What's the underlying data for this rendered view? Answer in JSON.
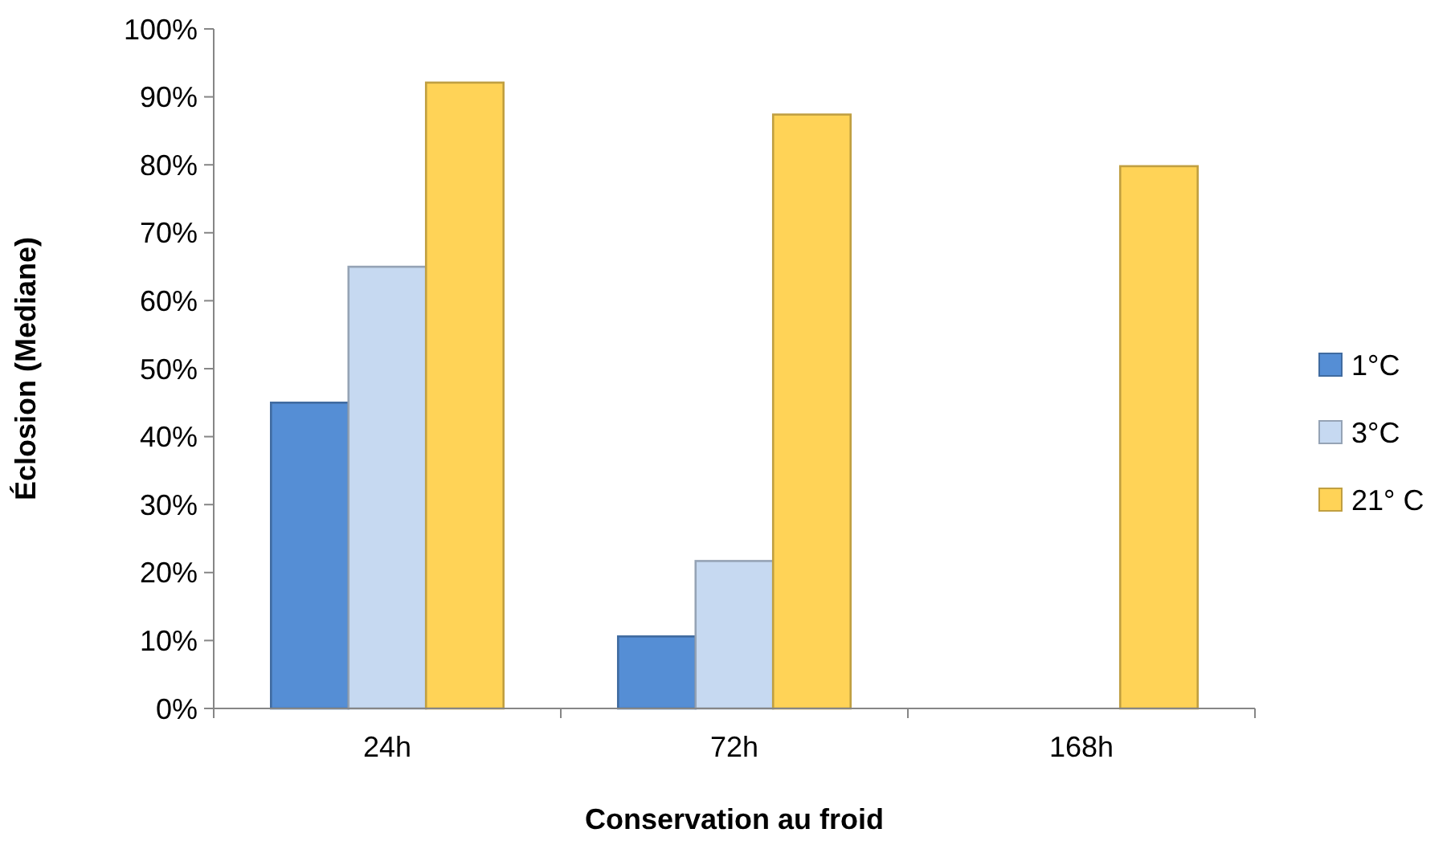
{
  "chart_data": {
    "type": "bar",
    "xlabel": "Conservation au froid",
    "ylabel": "Éclosion (Mediane)",
    "categories": [
      "24h",
      "72h",
      "168h"
    ],
    "series": [
      {
        "name": "1°C",
        "color": "#558ed5",
        "values": [
          45,
          10.6,
          null
        ]
      },
      {
        "name": "3°C",
        "color": "#c6d9f1",
        "values": [
          65,
          21.7,
          null
        ]
      },
      {
        "name": "21° C",
        "color": "#ffd357",
        "values": [
          92.1,
          87.4,
          79.8
        ]
      }
    ],
    "ylim": [
      0,
      100
    ],
    "yticks": [
      {
        "value": 0,
        "label": "0%"
      },
      {
        "value": 10,
        "label": "10%"
      },
      {
        "value": 20,
        "label": "20%"
      },
      {
        "value": 30,
        "label": "30%"
      },
      {
        "value": 40,
        "label": "40%"
      },
      {
        "value": 50,
        "label": "50%"
      },
      {
        "value": 60,
        "label": "60%"
      },
      {
        "value": 70,
        "label": "70%"
      },
      {
        "value": 80,
        "label": "80%"
      },
      {
        "value": 90,
        "label": "90%"
      },
      {
        "value": 100,
        "label": "100%"
      }
    ],
    "grid": false,
    "legend": "right"
  }
}
